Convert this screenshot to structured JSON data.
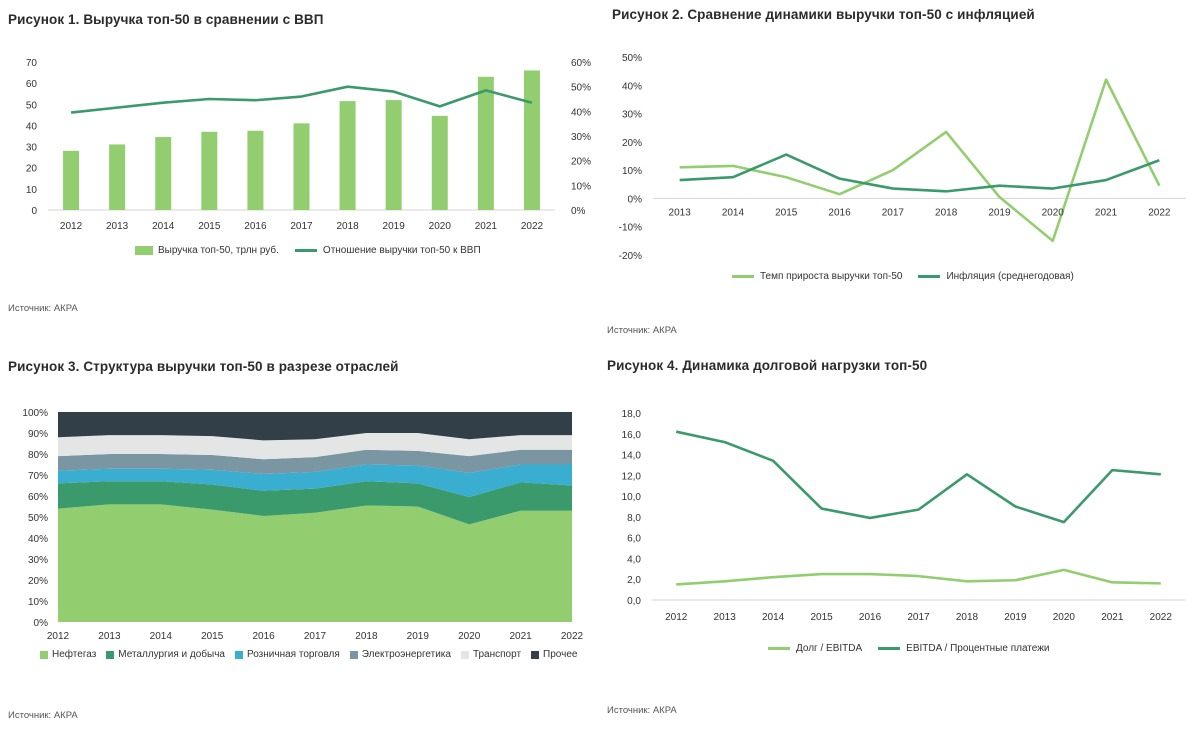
{
  "colors": {
    "light_green": "#92ce6f",
    "dark_green": "#3a9a6b",
    "neftegaz": "#92ce6f",
    "metallurgy": "#3a9a6b",
    "retail": "#3aaed1",
    "energy": "#7a96a3",
    "transport": "#e4e6e6",
    "other": "#333f48"
  },
  "figures": {
    "fig1": {
      "title": "Рисунок 1. Выручка топ-50 в сравнении с ВВП",
      "source": "Источник: АКРА"
    },
    "fig2": {
      "title": "Рисунок 2. Сравнение динамики выручки топ-50 с инфляцией",
      "source": "Источник: АКРА"
    },
    "fig3": {
      "title": "Рисунок 3. Структура выручки топ-50 в разрезе отраслей",
      "source": "Источник: АКРА"
    },
    "fig4": {
      "title": "Рисунок 4. Динамика долговой нагрузки топ-50",
      "source": "Источник: АКРА"
    }
  },
  "chart_data": [
    {
      "id": "fig1",
      "type": "bar",
      "title": "Рисунок 1. Выручка топ-50 в сравнении с ВВП",
      "categories": [
        "2012",
        "2013",
        "2014",
        "2015",
        "2016",
        "2017",
        "2018",
        "2019",
        "2020",
        "2021",
        "2022"
      ],
      "series": [
        {
          "name": "Выручка топ-50, трлн руб.",
          "type": "bar",
          "axis": "left",
          "values": [
            28,
            31,
            34.5,
            37,
            37.5,
            41,
            51.5,
            52,
            44.5,
            63,
            66
          ]
        },
        {
          "name": "Отношение выручки топ-50 к ВВП",
          "type": "line",
          "axis": "right",
          "values": [
            39.5,
            41.5,
            43.5,
            45,
            44.5,
            46,
            50,
            48,
            42,
            48.5,
            43.5
          ]
        }
      ],
      "ylim_left": [
        0,
        70
      ],
      "yticks_left": [
        "0",
        "10",
        "20",
        "30",
        "40",
        "50",
        "60",
        "70"
      ],
      "ylim_right": [
        0,
        60
      ],
      "yticks_right": [
        "0%",
        "10%",
        "20%",
        "30%",
        "40%",
        "50%",
        "60%"
      ]
    },
    {
      "id": "fig2",
      "type": "line",
      "title": "Рисунок 2. Сравнение динамики выручки топ-50 с инфляцией",
      "categories": [
        "2013",
        "2014",
        "2015",
        "2016",
        "2017",
        "2018",
        "2019",
        "2020",
        "2021",
        "2022"
      ],
      "series": [
        {
          "name": "Темп прироста выручки топ-50",
          "values": [
            11,
            11.5,
            7.5,
            1.5,
            10,
            23.5,
            0.5,
            -15,
            42,
            4.5
          ]
        },
        {
          "name": "Инфляция (среднегодовая)",
          "values": [
            6.5,
            7.5,
            15.5,
            7,
            3.5,
            2.5,
            4.5,
            3.5,
            6.5,
            13.5
          ]
        }
      ],
      "ylim": [
        -20,
        50
      ],
      "yticks": [
        "-20%",
        "-10%",
        "0%",
        "10%",
        "20%",
        "30%",
        "40%",
        "50%"
      ]
    },
    {
      "id": "fig3",
      "type": "area",
      "title": "Рисунок 3. Структура выручки топ-50 в разрезе отраслей",
      "categories": [
        "2012",
        "2013",
        "2014",
        "2015",
        "2016",
        "2017",
        "2018",
        "2019",
        "2020",
        "2021",
        "2022"
      ],
      "series": [
        {
          "name": "Нефтегаз",
          "values": [
            54,
            56,
            56,
            53.5,
            50.5,
            52,
            55.5,
            55,
            46.5,
            53,
            53
          ]
        },
        {
          "name": "Металлургия и добыча",
          "values": [
            12,
            11,
            11,
            12,
            12,
            11.5,
            11.5,
            11,
            13,
            13.5,
            12
          ]
        },
        {
          "name": "Розничная торговля",
          "values": [
            6,
            6,
            6,
            7,
            8,
            8,
            8,
            8.5,
            11.5,
            8.5,
            10
          ]
        },
        {
          "name": "Электроэнергетика",
          "values": [
            7,
            7,
            7,
            7,
            7,
            7,
            7,
            7,
            8,
            7,
            7
          ]
        },
        {
          "name": "Транспорт",
          "values": [
            9,
            9,
            9,
            9,
            9,
            8.5,
            8,
            8.5,
            8,
            7,
            7
          ]
        },
        {
          "name": "Прочее",
          "values": [
            12,
            11,
            11,
            11.5,
            13.5,
            13,
            10,
            10,
            13,
            11,
            11
          ]
        }
      ],
      "ylim": [
        0,
        100
      ],
      "yticks": [
        "0%",
        "10%",
        "20%",
        "30%",
        "40%",
        "50%",
        "60%",
        "70%",
        "80%",
        "90%",
        "100%"
      ]
    },
    {
      "id": "fig4",
      "type": "line",
      "title": "Рисунок 4. Динамика долговой нагрузки топ-50",
      "categories": [
        "2012",
        "2013",
        "2014",
        "2015",
        "2016",
        "2017",
        "2018",
        "2019",
        "2020",
        "2021",
        "2022"
      ],
      "series": [
        {
          "name": "Долг / EBITDA",
          "values": [
            1.5,
            1.8,
            2.2,
            2.5,
            2.5,
            2.3,
            1.8,
            1.9,
            2.9,
            1.7,
            1.6
          ]
        },
        {
          "name": "EBITDA / Процентные платежи",
          "values": [
            16.2,
            15.2,
            13.4,
            8.8,
            7.9,
            8.7,
            12.1,
            9.0,
            7.5,
            12.5,
            12.1
          ]
        }
      ],
      "ylim": [
        0,
        18
      ],
      "yticks": [
        "0,0",
        "2,0",
        "4,0",
        "6,0",
        "8,0",
        "10,0",
        "12,0",
        "14,0",
        "16,0",
        "18,0"
      ]
    }
  ]
}
